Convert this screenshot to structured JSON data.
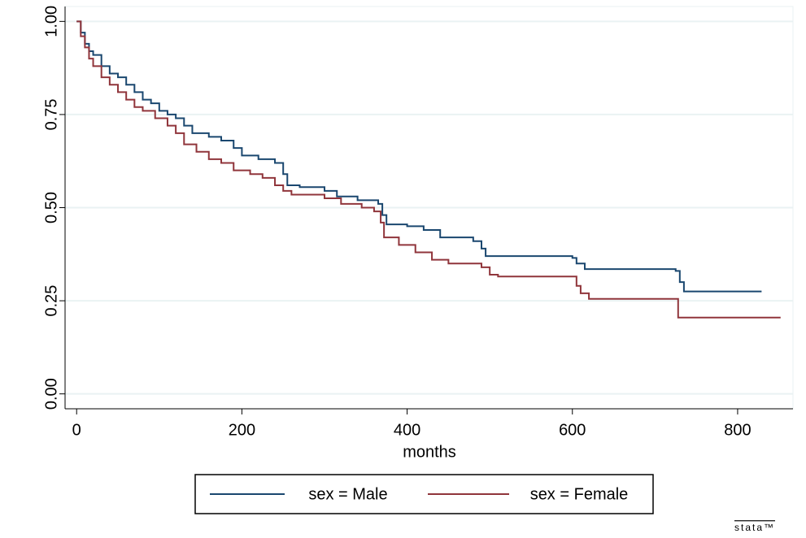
{
  "chart_data": {
    "type": "line",
    "drawstyle": "steps-post",
    "xlabel": "months",
    "xlim": [
      -14,
      867
    ],
    "ylim": [
      -0.04,
      1.04
    ],
    "xticks": [
      0,
      200,
      400,
      600,
      800
    ],
    "yticks": [
      {
        "value": 0,
        "label": "0.00"
      },
      {
        "value": 0.25,
        "label": "0.25"
      },
      {
        "value": 0.5,
        "label": "0.50"
      },
      {
        "value": 0.75,
        "label": "0.75"
      },
      {
        "value": 1,
        "label": "1.00"
      }
    ],
    "grid": true,
    "legend": "bottom",
    "watermark": "stata™",
    "series": [
      {
        "name": "sex = Male",
        "color": "#1a476f",
        "x": [
          0,
          5,
          10,
          15,
          20,
          30,
          40,
          50,
          60,
          70,
          80,
          90,
          100,
          110,
          120,
          130,
          140,
          160,
          175,
          190,
          200,
          220,
          240,
          250,
          255,
          270,
          300,
          315,
          340,
          365,
          370,
          375,
          400,
          420,
          440,
          480,
          490,
          495,
          600,
          605,
          615,
          725,
          730,
          735,
          829
        ],
        "values": [
          1.0,
          0.97,
          0.94,
          0.92,
          0.91,
          0.88,
          0.86,
          0.85,
          0.83,
          0.81,
          0.79,
          0.78,
          0.76,
          0.75,
          0.74,
          0.72,
          0.7,
          0.69,
          0.68,
          0.66,
          0.64,
          0.63,
          0.62,
          0.59,
          0.56,
          0.555,
          0.545,
          0.53,
          0.52,
          0.51,
          0.48,
          0.455,
          0.45,
          0.44,
          0.42,
          0.41,
          0.39,
          0.37,
          0.365,
          0.35,
          0.335,
          0.33,
          0.3,
          0.275,
          0.275
        ]
      },
      {
        "name": "sex = Female",
        "color": "#90353b",
        "x": [
          0,
          5,
          10,
          15,
          20,
          30,
          40,
          50,
          60,
          70,
          80,
          95,
          110,
          120,
          130,
          145,
          160,
          175,
          190,
          210,
          225,
          240,
          250,
          260,
          300,
          320,
          345,
          360,
          368,
          372,
          390,
          410,
          430,
          450,
          490,
          500,
          510,
          600,
          605,
          610,
          620,
          725,
          728,
          852
        ],
        "values": [
          1.0,
          0.96,
          0.93,
          0.9,
          0.88,
          0.85,
          0.83,
          0.81,
          0.79,
          0.77,
          0.76,
          0.74,
          0.72,
          0.7,
          0.67,
          0.65,
          0.63,
          0.62,
          0.6,
          0.59,
          0.58,
          0.56,
          0.545,
          0.535,
          0.525,
          0.51,
          0.5,
          0.49,
          0.46,
          0.42,
          0.4,
          0.38,
          0.36,
          0.35,
          0.34,
          0.32,
          0.315,
          0.315,
          0.29,
          0.27,
          0.255,
          0.255,
          0.205,
          0.205
        ]
      }
    ]
  }
}
